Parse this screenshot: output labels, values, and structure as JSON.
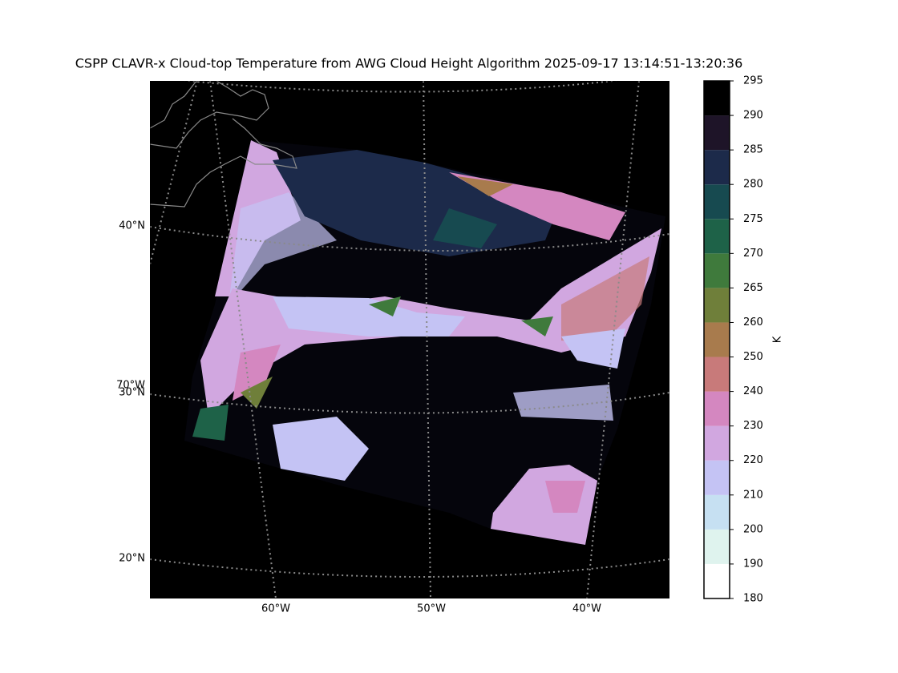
{
  "map": {
    "title": "CSPP CLAVR-x Cloud-top Temperature from AWG Cloud Height Algorithm 2025-09-17 13:14:51-13:20:36",
    "lat_labels": [
      "40°N",
      "30°N",
      "20°N"
    ],
    "lon_labels": [
      "70°W",
      "60°W",
      "50°W",
      "40°W"
    ]
  },
  "colorbar": {
    "label": "K",
    "ticks": [
      180,
      190,
      200,
      210,
      220,
      230,
      240,
      250,
      260,
      265,
      270,
      275,
      280,
      285,
      290,
      295
    ],
    "colors": [
      "#ffffff",
      "#dff3ee",
      "#c6e0f2",
      "#c4c3f4",
      "#d1a7e0",
      "#d487c0",
      "#c87a7a",
      "#a87b4d",
      "#6f7f3a",
      "#3f7a3c",
      "#1e6248",
      "#174a50",
      "#1c2a4a",
      "#1e1428",
      "#000000"
    ]
  }
}
